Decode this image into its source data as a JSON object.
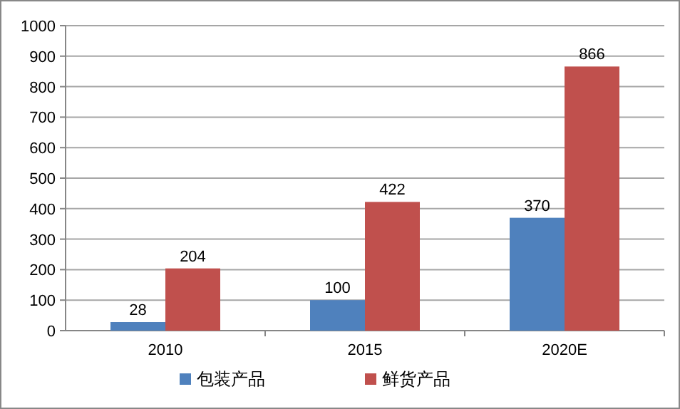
{
  "chart_data": {
    "type": "bar",
    "categories": [
      "2010",
      "2015",
      "2020E"
    ],
    "series": [
      {
        "name": "包装产品",
        "color": "#4f81bd",
        "values": [
          28,
          100,
          370
        ]
      },
      {
        "name": "鲜货产品",
        "color": "#c0504d",
        "values": [
          204,
          422,
          866
        ]
      }
    ],
    "ylim": [
      0,
      1000
    ],
    "yticks": [
      0,
      100,
      200,
      300,
      400,
      500,
      600,
      700,
      800,
      900,
      1000
    ],
    "grid": "y",
    "legend": "bottom",
    "data_labels": true
  }
}
